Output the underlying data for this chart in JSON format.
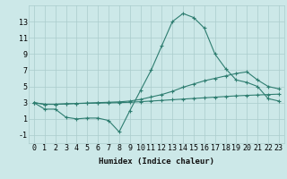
{
  "xlabel": "Humidex (Indice chaleur)",
  "x_values": [
    0,
    1,
    2,
    3,
    4,
    5,
    6,
    7,
    8,
    9,
    10,
    11,
    12,
    13,
    14,
    15,
    16,
    17,
    18,
    19,
    20,
    21,
    22,
    23
  ],
  "line1_y": [
    3.0,
    2.2,
    2.2,
    1.2,
    1.0,
    1.1,
    1.1,
    0.8,
    -0.6,
    2.0,
    4.5,
    7.0,
    10.0,
    13.0,
    14.0,
    13.5,
    12.2,
    9.0,
    7.2,
    5.8,
    5.5,
    5.0,
    3.5,
    3.2
  ],
  "line2_y": [
    3.0,
    2.8,
    2.8,
    2.85,
    2.9,
    2.95,
    3.0,
    3.05,
    3.1,
    3.2,
    3.4,
    3.7,
    4.0,
    4.4,
    4.9,
    5.3,
    5.7,
    6.0,
    6.3,
    6.6,
    6.8,
    5.8,
    5.0,
    4.7
  ],
  "line3_y": [
    3.0,
    2.8,
    2.8,
    2.85,
    2.9,
    2.92,
    2.95,
    2.97,
    3.0,
    3.05,
    3.12,
    3.2,
    3.28,
    3.36,
    3.44,
    3.52,
    3.6,
    3.68,
    3.76,
    3.84,
    3.9,
    3.95,
    4.0,
    4.05
  ],
  "line_color": "#2e7d70",
  "bg_color": "#cce8e8",
  "grid_color": "#aacccc",
  "ylim": [
    -2,
    15
  ],
  "yticks": [
    -1,
    1,
    3,
    5,
    7,
    9,
    11,
    13
  ],
  "xticks": [
    0,
    1,
    2,
    3,
    4,
    5,
    6,
    7,
    8,
    9,
    10,
    11,
    12,
    13,
    14,
    15,
    16,
    17,
    18,
    19,
    20,
    21,
    22,
    23
  ],
  "xlabel_fontsize": 6.5,
  "tick_fontsize": 6.0
}
